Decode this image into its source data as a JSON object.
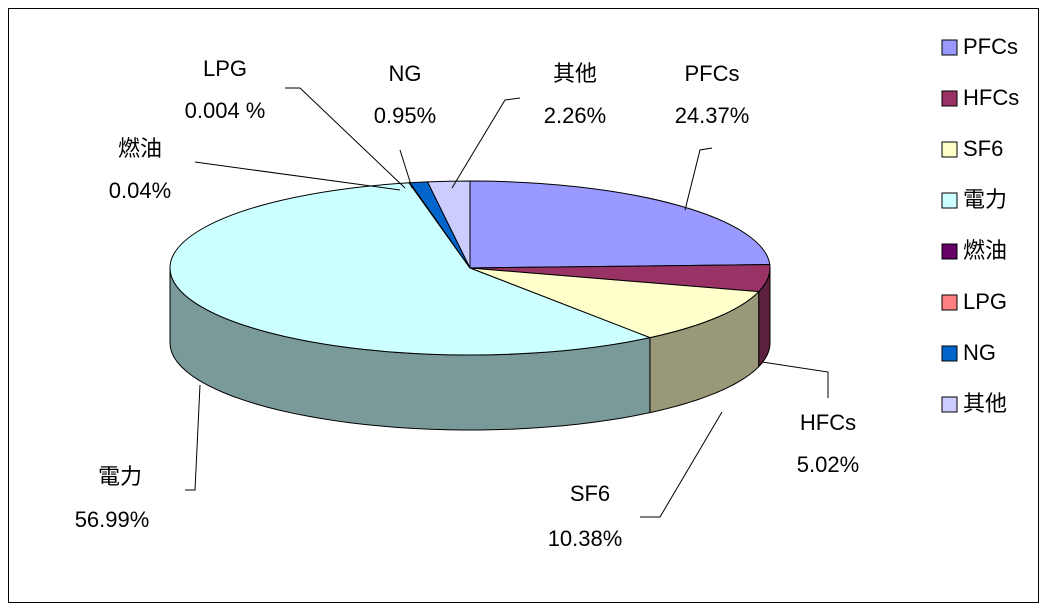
{
  "chart_data": {
    "type": "pie",
    "categories": [
      "PFCs",
      "HFCs",
      "SF6",
      "電力",
      "燃油",
      "LPG",
      "NG",
      "其他"
    ],
    "values": [
      24.37,
      5.02,
      10.38,
      56.99,
      0.04,
      0.004,
      0.95,
      2.26
    ],
    "value_labels": [
      "24.37%",
      "5.02%",
      "10.38%",
      "56.99%",
      "0.04%",
      "0.004 %",
      "0.95%",
      "2.26%"
    ],
    "colors": [
      "#9999ff",
      "#993366",
      "#ffffcc",
      "#ccffff",
      "#660066",
      "#ff8080",
      "#0066cc",
      "#ccccff"
    ],
    "legend": "right"
  }
}
